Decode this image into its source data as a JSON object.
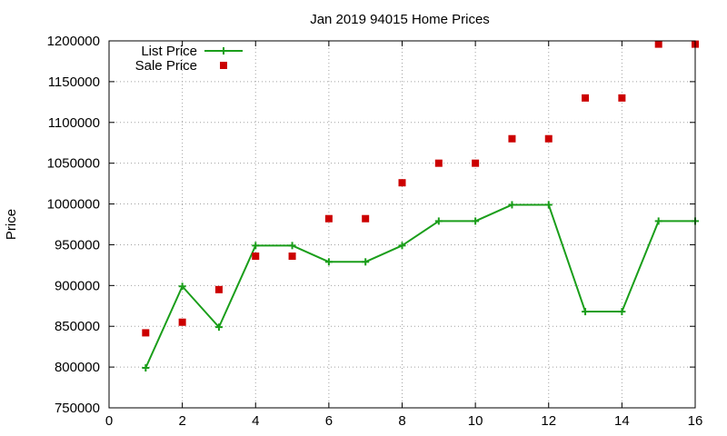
{
  "chart_data": {
    "type": "line",
    "title": "Jan 2019 94015 Home Prices",
    "xlabel": "",
    "ylabel": "Price",
    "xlim": [
      0,
      16
    ],
    "ylim": [
      750000,
      1200000
    ],
    "x_ticks": [
      0,
      2,
      4,
      6,
      8,
      10,
      12,
      14,
      16
    ],
    "y_ticks": [
      750000,
      800000,
      850000,
      900000,
      950000,
      1000000,
      1050000,
      1100000,
      1150000,
      1200000
    ],
    "grid": true,
    "legend_position": "top-left",
    "series": [
      {
        "name": "List Price",
        "style": "line-with-plus-markers",
        "color": "#1a9e1a",
        "x": [
          1,
          2,
          3,
          4,
          5,
          6,
          7,
          8,
          9,
          10,
          11,
          12,
          13,
          14,
          15,
          16
        ],
        "values": [
          799000,
          899000,
          849000,
          949000,
          949000,
          929000,
          929000,
          949000,
          979000,
          979000,
          999000,
          999000,
          868000,
          868000,
          979000,
          979000
        ]
      },
      {
        "name": "Sale Price",
        "style": "square-markers",
        "color": "#cc0000",
        "x": [
          1,
          2,
          3,
          4,
          5,
          6,
          7,
          8,
          9,
          10,
          11,
          12,
          13,
          14,
          15,
          16
        ],
        "values": [
          842000,
          855000,
          895000,
          936000,
          936000,
          982000,
          982000,
          1026000,
          1050000,
          1050000,
          1080000,
          1080000,
          1130000,
          1130000,
          1196000,
          1196000
        ]
      }
    ]
  }
}
